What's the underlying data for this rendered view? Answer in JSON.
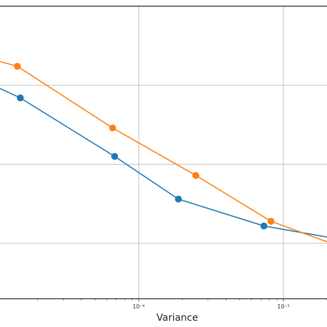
{
  "chart_data": {
    "type": "line",
    "xscale": "log",
    "xlabel": "Variance",
    "ylabel": "",
    "title": "",
    "xlim": [
      1.1e-05,
      0.002
    ],
    "ylim": [
      0,
      1.85
    ],
    "grid": true,
    "legend": "none",
    "x_ticks": [
      {
        "value": 0.0001,
        "label": "10⁻⁴"
      },
      {
        "value": 0.001,
        "label": "10⁻³"
      }
    ],
    "y_grid_values": [
      0.35,
      0.85,
      1.35
    ],
    "series": [
      {
        "color": "#1f77b4",
        "x": [
          1.1e-05,
          1.52e-05,
          6.82e-05,
          0.000188,
          0.000733,
          0.002
        ],
        "y": [
          1.33,
          1.27,
          0.9,
          0.63,
          0.46,
          0.39
        ],
        "markers": [
          false,
          true,
          true,
          true,
          true,
          false
        ]
      },
      {
        "color": "#ff7f0e",
        "x": [
          1.1e-05,
          1.45e-05,
          6.6e-05,
          0.000248,
          0.00082,
          0.002
        ],
        "y": [
          1.5,
          1.47,
          1.08,
          0.78,
          0.49,
          0.36
        ],
        "markers": [
          false,
          true,
          true,
          true,
          true,
          false
        ]
      }
    ]
  }
}
